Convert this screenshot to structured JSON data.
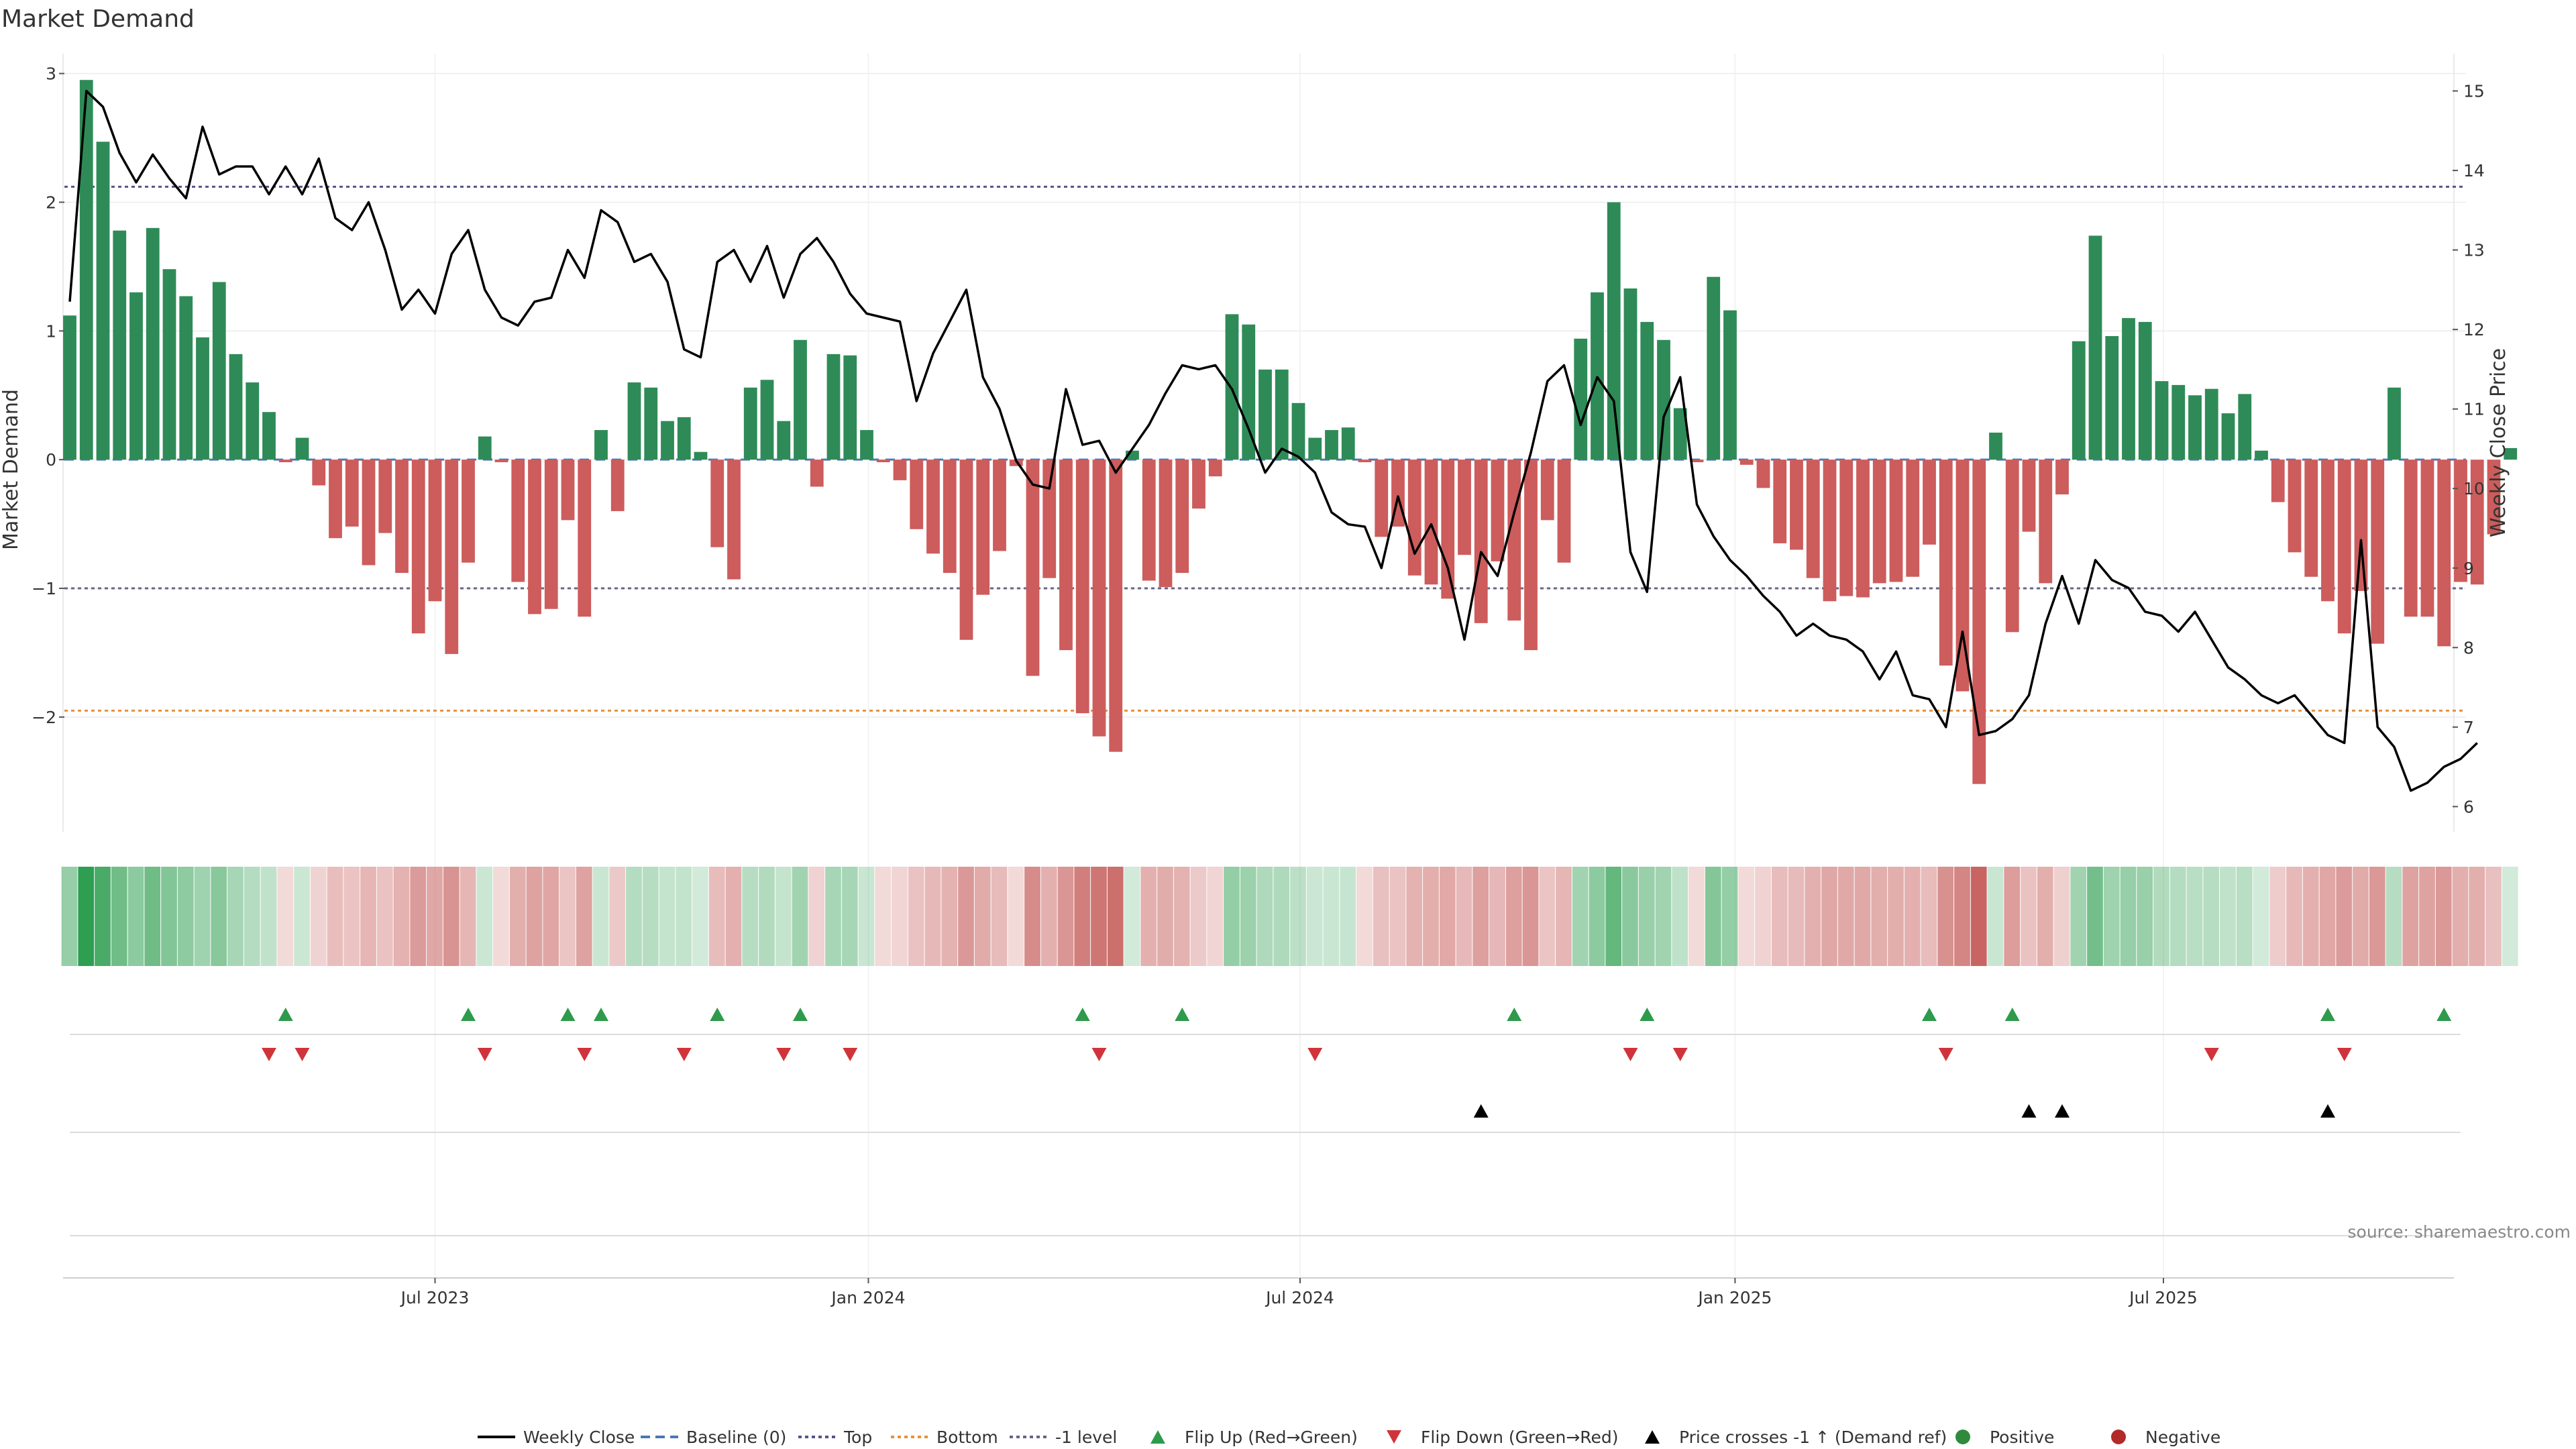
{
  "chart_data": {
    "type": "bar",
    "title": "Market Demand",
    "ylabel": "Market Demand",
    "y2label": "Weekly Close Price",
    "ylim": [
      -2.85,
      3.05
    ],
    "y2lim": [
      5.75,
      15.3
    ],
    "yticks": [
      -2,
      -1,
      0,
      1,
      2,
      3
    ],
    "y2ticks": [
      6,
      7,
      8,
      9,
      10,
      11,
      12,
      13,
      14,
      15
    ],
    "xlim_weeks": [
      0,
      144
    ],
    "xticks": [
      {
        "label": "Jul 2023",
        "week": 22
      },
      {
        "label": "Jan 2024",
        "week": 48.1
      },
      {
        "label": "Jul 2024",
        "week": 74.1
      },
      {
        "label": "Jan 2025",
        "week": 100.3
      },
      {
        "label": "Jul 2025",
        "week": 126.1
      }
    ],
    "levels": {
      "top": 2.12,
      "bottom": -1.95,
      "minus_one": -1.0
    },
    "series": [
      {
        "name": "Market Demand",
        "values": [
          1.12,
          2.95,
          2.47,
          1.78,
          1.3,
          1.8,
          1.48,
          1.27,
          0.95,
          1.38,
          0.82,
          0.6,
          0.37,
          -0.02,
          0.17,
          -0.2,
          -0.61,
          -0.52,
          -0.82,
          -0.57,
          -0.88,
          -1.35,
          -1.1,
          -1.51,
          -0.8,
          0.18,
          -0.02,
          -0.95,
          -1.2,
          -1.16,
          -0.47,
          -1.22,
          0.23,
          -0.4,
          0.6,
          0.56,
          0.3,
          0.33,
          0.06,
          -0.68,
          -0.93,
          0.56,
          0.62,
          0.3,
          0.93,
          -0.21,
          0.82,
          0.81,
          0.23,
          -0.02,
          -0.16,
          -0.54,
          -0.73,
          -0.88,
          -1.4,
          -1.05,
          -0.71,
          -0.05,
          -1.68,
          -0.92,
          -1.48,
          -1.97,
          -2.15,
          -2.27,
          0.07,
          -0.94,
          -0.99,
          -0.88,
          -0.38,
          -0.13,
          1.13,
          1.05,
          0.7,
          0.7,
          0.44,
          0.17,
          0.23,
          0.25,
          -0.02,
          -0.6,
          -0.52,
          -0.9,
          -0.97,
          -1.08,
          -0.74,
          -1.27,
          -0.79,
          -1.25,
          -1.48,
          -0.47,
          -0.8,
          0.94,
          1.3,
          2.0,
          1.33,
          1.07,
          0.93,
          0.4,
          -0.02,
          1.42,
          1.16,
          -0.04,
          -0.22,
          -0.65,
          -0.7,
          -0.92,
          -1.1,
          -1.06,
          -1.07,
          -0.96,
          -0.95,
          -0.91,
          -0.66,
          -1.6,
          -1.8,
          -2.52,
          0.21,
          -1.34,
          -0.56,
          -0.96,
          -0.27,
          0.92,
          1.74,
          0.96,
          1.1,
          1.07,
          0.61,
          0.58,
          0.5,
          0.55,
          0.36,
          0.51,
          0.07,
          -0.33,
          -0.72,
          -0.91,
          -1.1,
          -1.35,
          -1.02,
          -1.43,
          0.56,
          -1.22,
          -1.22,
          -1.45,
          -0.95,
          -0.97,
          -0.58,
          0.09
        ]
      },
      {
        "name": "Weekly Close",
        "values": [
          12.35,
          15.0,
          14.8,
          14.22,
          13.85,
          14.2,
          13.9,
          13.65,
          14.55,
          13.95,
          14.05,
          14.05,
          13.7,
          14.05,
          13.7,
          14.15,
          13.4,
          13.25,
          13.6,
          13.0,
          12.25,
          12.5,
          12.2,
          12.95,
          13.25,
          12.5,
          12.15,
          12.05,
          12.35,
          12.4,
          13.0,
          12.65,
          13.5,
          13.35,
          12.85,
          12.95,
          12.6,
          11.75,
          11.65,
          12.85,
          13.0,
          12.6,
          13.05,
          12.4,
          12.95,
          13.15,
          12.85,
          12.45,
          12.2,
          12.15,
          12.1,
          11.1,
          11.7,
          12.1,
          12.5,
          11.4,
          11.0,
          10.35,
          10.05,
          10.0,
          11.25,
          10.55,
          10.6,
          10.2,
          10.5,
          10.8,
          11.2,
          11.55,
          11.5,
          11.55,
          11.25,
          10.75,
          10.2,
          10.5,
          10.4,
          10.2,
          9.7,
          9.55,
          9.52,
          9.0,
          9.9,
          9.18,
          9.55,
          9.0,
          8.1,
          9.2,
          8.9,
          9.7,
          10.45,
          11.35,
          11.55,
          10.8,
          11.4,
          11.1,
          9.2,
          8.7,
          10.9,
          11.4,
          9.8,
          9.4,
          9.1,
          8.9,
          8.65,
          8.45,
          8.15,
          8.3,
          8.15,
          8.1,
          7.95,
          7.6,
          7.95,
          7.4,
          7.35,
          7.0,
          8.2,
          6.9,
          6.95,
          7.1,
          7.4,
          8.3,
          8.9,
          8.3,
          9.1,
          8.85,
          8.75,
          8.45,
          8.4,
          8.2,
          8.45,
          8.1,
          7.75,
          7.6,
          7.4,
          7.3,
          7.4,
          7.15,
          6.9,
          6.8,
          9.35,
          7.0,
          6.75,
          6.2,
          6.3,
          6.5,
          6.6,
          6.8
        ]
      }
    ],
    "flip_up_weeks": [
      13,
      24,
      30,
      32,
      39,
      44,
      61,
      67,
      87,
      95,
      112,
      117,
      136,
      143
    ],
    "flip_down_weeks": [
      12,
      14,
      25,
      31,
      37,
      43,
      47,
      62,
      75,
      94,
      97,
      113,
      129,
      137
    ],
    "price_cross_weeks": [
      85,
      118,
      120,
      136
    ],
    "legend": [
      {
        "label": "Weekly Close",
        "swatch": "line",
        "color": "#000000"
      },
      {
        "label": "Baseline (0)",
        "swatch": "dash",
        "color": "#4a78b8"
      },
      {
        "label": "Top",
        "swatch": "dot",
        "color": "#55558a"
      },
      {
        "label": "Bottom",
        "swatch": "dot",
        "color": "#e8913a"
      },
      {
        "label": "-1 level",
        "swatch": "dot",
        "color": "#666688"
      },
      {
        "label": "Flip Up (Red→Green)",
        "swatch": "tri-up",
        "color": "#2e9a4b"
      },
      {
        "label": "Flip Down (Green→Red)",
        "swatch": "tri-down",
        "color": "#d0343a"
      },
      {
        "label": "Price crosses -1 ↑ (Demand ref)",
        "swatch": "tri-up",
        "color": "#000000"
      },
      {
        "label": "Positive",
        "swatch": "circle",
        "color": "#2e8b3e"
      },
      {
        "label": "Negative",
        "swatch": "circle",
        "color": "#b22a2a"
      }
    ],
    "source": "source: sharemaestro.com",
    "colors": {
      "positive": "#2e8b57",
      "negative": "#cd5c5c",
      "heat_positive": "#2e9e50",
      "heat_negative": "#c0504d",
      "price": "#000000"
    }
  }
}
